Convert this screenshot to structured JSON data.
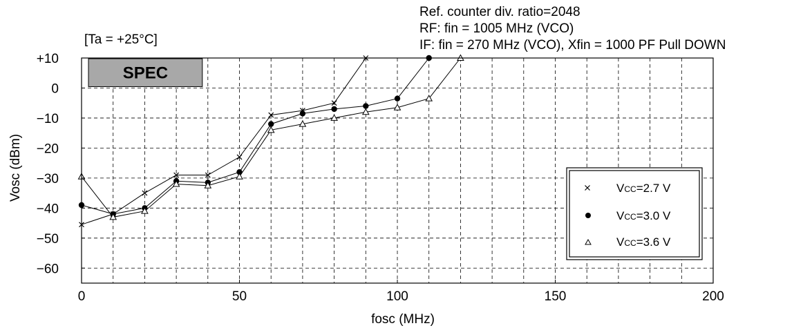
{
  "chart_data": {
    "type": "line",
    "title": "",
    "xlabel": "fosc (MHz)",
    "ylabel": "Vosc (dBm)",
    "xlim": [
      0,
      200
    ],
    "ylim": [
      -65,
      10
    ],
    "x_ticks": [
      0,
      50,
      100,
      150,
      200
    ],
    "x_tick_labels": [
      "0",
      "50",
      "100",
      "150",
      "200"
    ],
    "y_ticks": [
      10,
      0,
      -10,
      -20,
      -30,
      -40,
      -50,
      -60
    ],
    "y_tick_labels": [
      "+10",
      "0",
      "−10",
      "−20",
      "−30",
      "−40",
      "−50",
      "−60"
    ],
    "grid": true,
    "legend_position": "right",
    "annotations": {
      "temperature": "[Ta = +25°C]",
      "spec_label": "SPEC",
      "conditions": [
        "Ref. counter div. ratio=2048",
        "RF: fin = 1005 MHz (VCO)",
        "IF: fin = 270 MHz (VCO), Xfin = 1000 PF Pull DOWN"
      ]
    },
    "spec_region": {
      "x": [
        0,
        40
      ],
      "y": [
        0,
        10
      ]
    },
    "series": [
      {
        "name": "VCC=2.7 V",
        "legend_main": "V",
        "legend_sub": "CC",
        "legend_rest": "=2.7 V",
        "marker": "x",
        "points": [
          [
            0,
            -45.5
          ],
          [
            10,
            -42
          ],
          [
            20,
            -35
          ],
          [
            30,
            -29
          ],
          [
            40,
            -29
          ],
          [
            50,
            -23
          ],
          [
            60,
            -9
          ],
          [
            70,
            -7.5
          ],
          [
            80,
            -5
          ],
          [
            90,
            10
          ]
        ]
      },
      {
        "name": "VCC=3.0 V",
        "legend_main": "V",
        "legend_sub": "CC",
        "legend_rest": "=3.0 V",
        "marker": "dot",
        "points": [
          [
            0,
            -39
          ],
          [
            10,
            -42
          ],
          [
            20,
            -40
          ],
          [
            30,
            -31
          ],
          [
            40,
            -31.5
          ],
          [
            50,
            -28
          ],
          [
            60,
            -12
          ],
          [
            70,
            -8.5
          ],
          [
            80,
            -7
          ],
          [
            90,
            -6
          ],
          [
            100,
            -3.5
          ],
          [
            110,
            10
          ]
        ]
      },
      {
        "name": "VCC=3.6 V",
        "legend_main": "V",
        "legend_sub": "CC",
        "legend_rest": "=3.6 V",
        "marker": "triangle",
        "points": [
          [
            0,
            -29.5
          ],
          [
            10,
            -43
          ],
          [
            20,
            -41
          ],
          [
            30,
            -32
          ],
          [
            40,
            -32.5
          ],
          [
            50,
            -29.5
          ],
          [
            60,
            -14
          ],
          [
            70,
            -12
          ],
          [
            80,
            -10
          ],
          [
            90,
            -8
          ],
          [
            100,
            -6.5
          ],
          [
            110,
            -3.5
          ],
          [
            120,
            10
          ]
        ]
      }
    ],
    "colors": {
      "line": "#000000",
      "spec_fill": "#a8a8a8",
      "grid": "#000000"
    }
  }
}
